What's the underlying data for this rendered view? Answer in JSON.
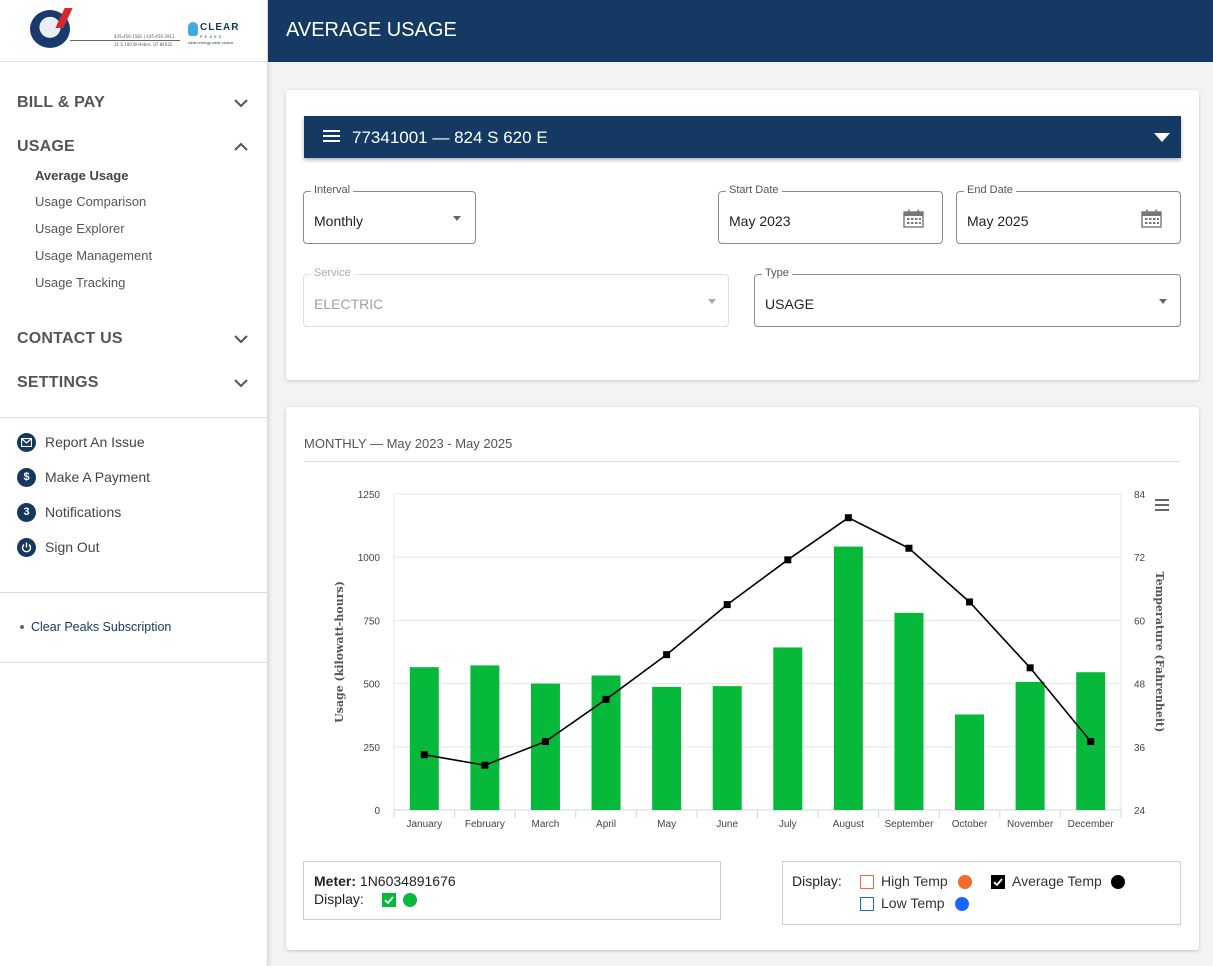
{
  "sidebar": {
    "logo": {
      "contact_line": "435-456-1581 | 435-456-2911",
      "address_line": "31 S 100 W Heber, UT 84032",
      "clear_name": "CLEAR",
      "clear_sub": "PEAKS",
      "clear_tagline": "clean energy   clear choice"
    },
    "sections": [
      {
        "label": "BILL & PAY",
        "expanded": false
      },
      {
        "label": "USAGE",
        "expanded": true
      },
      {
        "label": "CONTACT US",
        "expanded": false
      },
      {
        "label": "SETTINGS",
        "expanded": false
      }
    ],
    "usage_items": [
      "Average Usage",
      "Usage Comparison",
      "Usage Explorer",
      "Usage Management",
      "Usage Tracking"
    ],
    "actions": [
      {
        "label": "Report An Issue",
        "icon": "mail-icon"
      },
      {
        "label": "Make A Payment",
        "icon": "dollar-icon"
      },
      {
        "label": "Notifications",
        "icon": "notification-count-icon",
        "badge": "3"
      },
      {
        "label": "Sign Out",
        "icon": "power-icon"
      }
    ],
    "subscription_link": "Clear Peaks Subscription"
  },
  "header": {
    "title": "AVERAGE USAGE"
  },
  "filters": {
    "account": "77341001 — 824 S 620 E",
    "interval": {
      "label": "Interval",
      "value": "Monthly"
    },
    "start_date": {
      "label": "Start Date",
      "value": "May 2023"
    },
    "end_date": {
      "label": "End Date",
      "value": "May 2025"
    },
    "service": {
      "label": "Service",
      "value": "ELECTRIC"
    },
    "type": {
      "label": "Type",
      "value": "USAGE"
    }
  },
  "chart_section": {
    "title": "MONTHLY — May 2023 - May 2025"
  },
  "chart_data": {
    "type": "bar",
    "categories": [
      "January",
      "February",
      "March",
      "April",
      "May",
      "June",
      "July",
      "August",
      "September",
      "October",
      "November",
      "December"
    ],
    "series": [
      {
        "values": [
          565,
          572,
          500,
          532,
          487,
          490,
          643,
          1042,
          780,
          378,
          507,
          545
        ],
        "color": "#06b93a",
        "axis": "left"
      },
      {
        "type": "line",
        "values": [
          34.5,
          32.5,
          37,
          45,
          53.5,
          63,
          71.5,
          79.5,
          73.7,
          63.5,
          51,
          37
        ],
        "color": "#000000",
        "axis": "right"
      }
    ],
    "ylabel": "Usage (kilowatt-hours)",
    "ylabel_right": "Temperature (Fahrenheit)",
    "ylim": [
      0,
      1250
    ],
    "ylim_right": [
      24,
      84
    ],
    "yticks": [
      "0",
      "250",
      "500",
      "750",
      "1000",
      "1250"
    ],
    "yticks_right": [
      "24",
      "36",
      "48",
      "60",
      "72",
      "84"
    ],
    "grid": true
  },
  "meter_legend": {
    "meter_label": "Meter:",
    "meter_value": "1N6034891676",
    "display_label": "Display:",
    "usage_checked": true,
    "usage_color": "#06b93a"
  },
  "temp_legend": {
    "display_label": "Display:",
    "items": [
      {
        "label": "High Temp",
        "checked": false,
        "color": "#f26a2e"
      },
      {
        "label": "Average Temp",
        "checked": true,
        "color": "#000000"
      },
      {
        "label": "Low Temp",
        "checked": false,
        "color": "#1966ff"
      }
    ]
  }
}
